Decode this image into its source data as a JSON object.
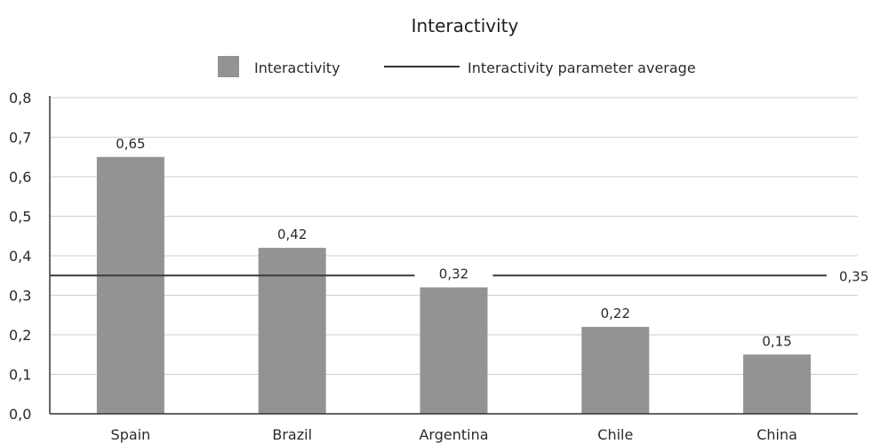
{
  "chart_data": {
    "type": "bar",
    "title": "Interactivity",
    "xlabel": "",
    "ylabel": "",
    "categories": [
      "Spain",
      "Brazil",
      "Argentina",
      "Chile",
      "China"
    ],
    "series": [
      {
        "name": "Interactivity",
        "values": [
          0.65,
          0.42,
          0.32,
          0.22,
          0.15
        ],
        "color": "#939393"
      }
    ],
    "data_labels": [
      "0,65",
      "0,42",
      "0,32",
      "0,22",
      "0,15"
    ],
    "reference_line": {
      "name": "Interactivity parameter average",
      "value": 0.35,
      "label": "0,35",
      "color": "#3a3a3a"
    },
    "ylim": [
      0,
      0.8
    ],
    "yticks": [
      0.0,
      0.1,
      0.2,
      0.3,
      0.4,
      0.5,
      0.6,
      0.7,
      0.8
    ],
    "ytick_labels": [
      "0,0",
      "0,1",
      "0,2",
      "0,3",
      "0,4",
      "0,5",
      "0,6",
      "0,7",
      "0,8"
    ],
    "grid": true,
    "legend_position": "top-center"
  },
  "legend": {
    "bar_label": "Interactivity",
    "line_label": "Interactivity parameter average"
  }
}
